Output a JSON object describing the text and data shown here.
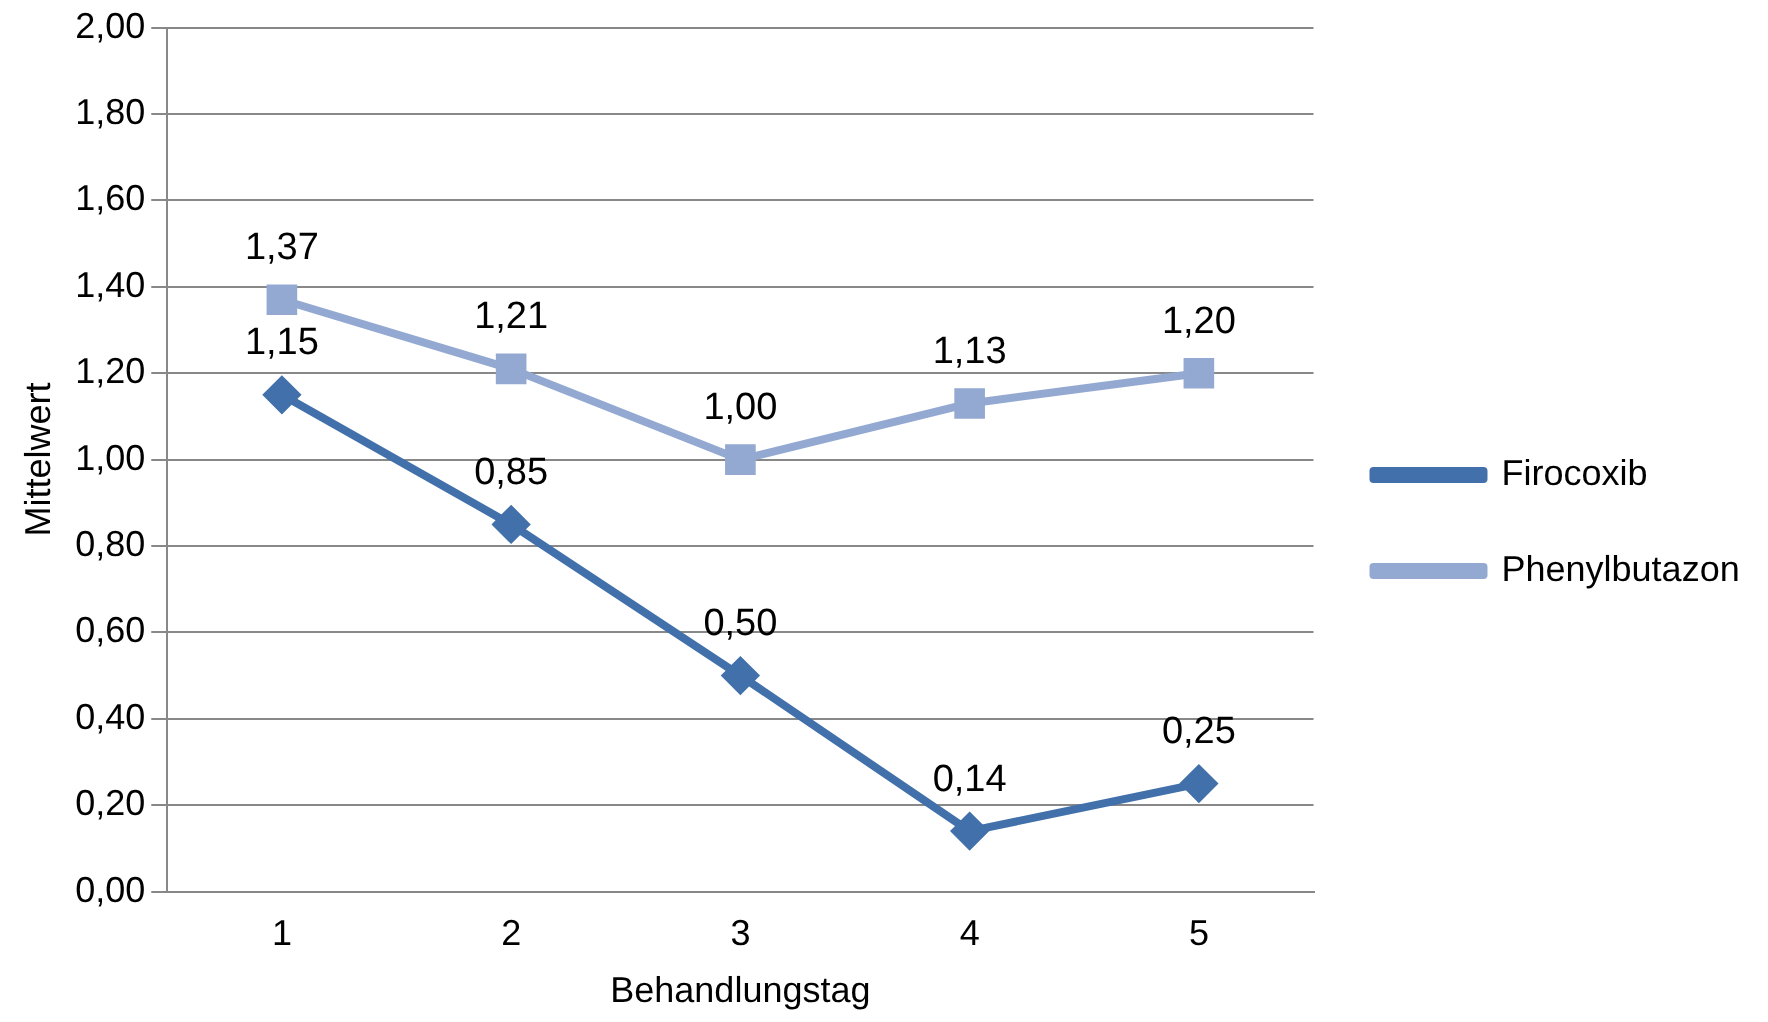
{
  "chart_data": {
    "type": "line",
    "xlabel": "Behandlungstag",
    "ylabel": "Mittelwert",
    "categories": [
      "1",
      "2",
      "3",
      "4",
      "5"
    ],
    "series": [
      {
        "name": "Firocoxib",
        "color": "#4170aa",
        "marker": "diamond",
        "values": [
          1.15,
          0.85,
          0.5,
          0.14,
          0.25
        ],
        "value_labels": [
          "1,15",
          "0,85",
          "0,50",
          "0,14",
          "0,25"
        ]
      },
      {
        "name": "Phenylbutazon",
        "color": "#93a9d2",
        "marker": "square",
        "values": [
          1.37,
          1.21,
          1.0,
          1.13,
          1.2
        ],
        "value_labels": [
          "1,37",
          "1,21",
          "1,00",
          "1,13",
          "1,20"
        ]
      }
    ],
    "ylim": [
      0,
      2
    ],
    "yticks": [
      {
        "value": 0,
        "label": "0,00"
      },
      {
        "value": 0.2,
        "label": "0,20"
      },
      {
        "value": 0.4,
        "label": "0,40"
      },
      {
        "value": 0.6,
        "label": "0,60"
      },
      {
        "value": 0.8,
        "label": "0,80"
      },
      {
        "value": 1.0,
        "label": "1,00"
      },
      {
        "value": 1.2,
        "label": "1,20"
      },
      {
        "value": 1.4,
        "label": "1,40"
      },
      {
        "value": 1.6,
        "label": "1,60"
      },
      {
        "value": 1.8,
        "label": "1,80"
      },
      {
        "value": 2.0,
        "label": "2,00"
      }
    ],
    "grid": "y",
    "legend": "right",
    "line_style": "solid"
  }
}
